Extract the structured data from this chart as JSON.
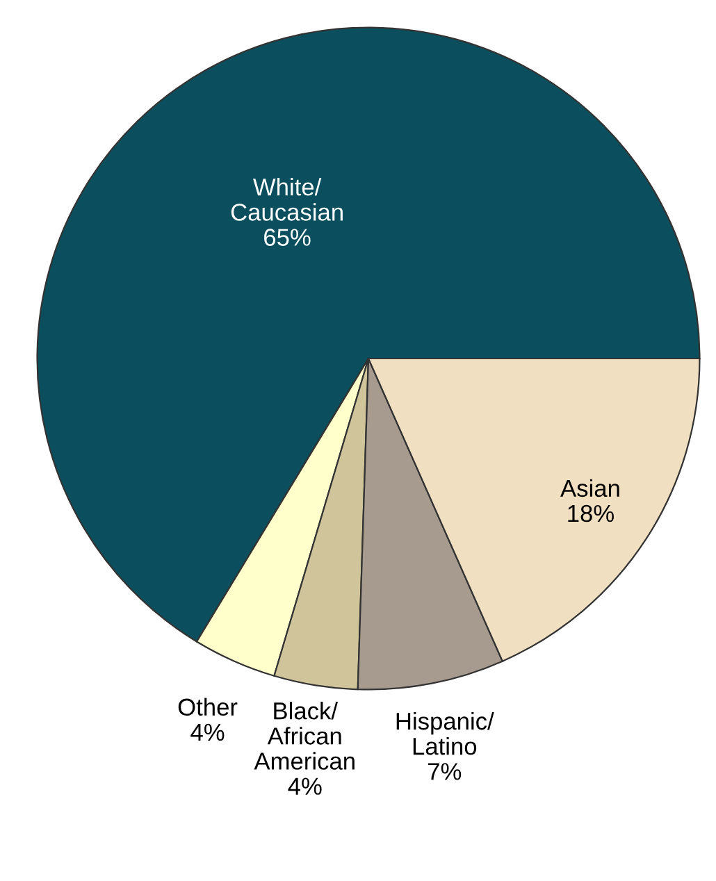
{
  "chart_data": {
    "type": "pie",
    "categories": [
      "White/\nCaucasian",
      "Other",
      "Black/\nAfrican\nAmerican",
      "Hispanic/\nLatino",
      "Asian"
    ],
    "values": [
      65,
      4,
      4,
      7,
      18
    ],
    "colors": [
      "#0b4f5e",
      "#ffffcc",
      "#cfc49a",
      "#a79a8f",
      "#f0dfc0"
    ],
    "value_labels": [
      "65%",
      "4%",
      "4%",
      "7%",
      "18%"
    ]
  }
}
